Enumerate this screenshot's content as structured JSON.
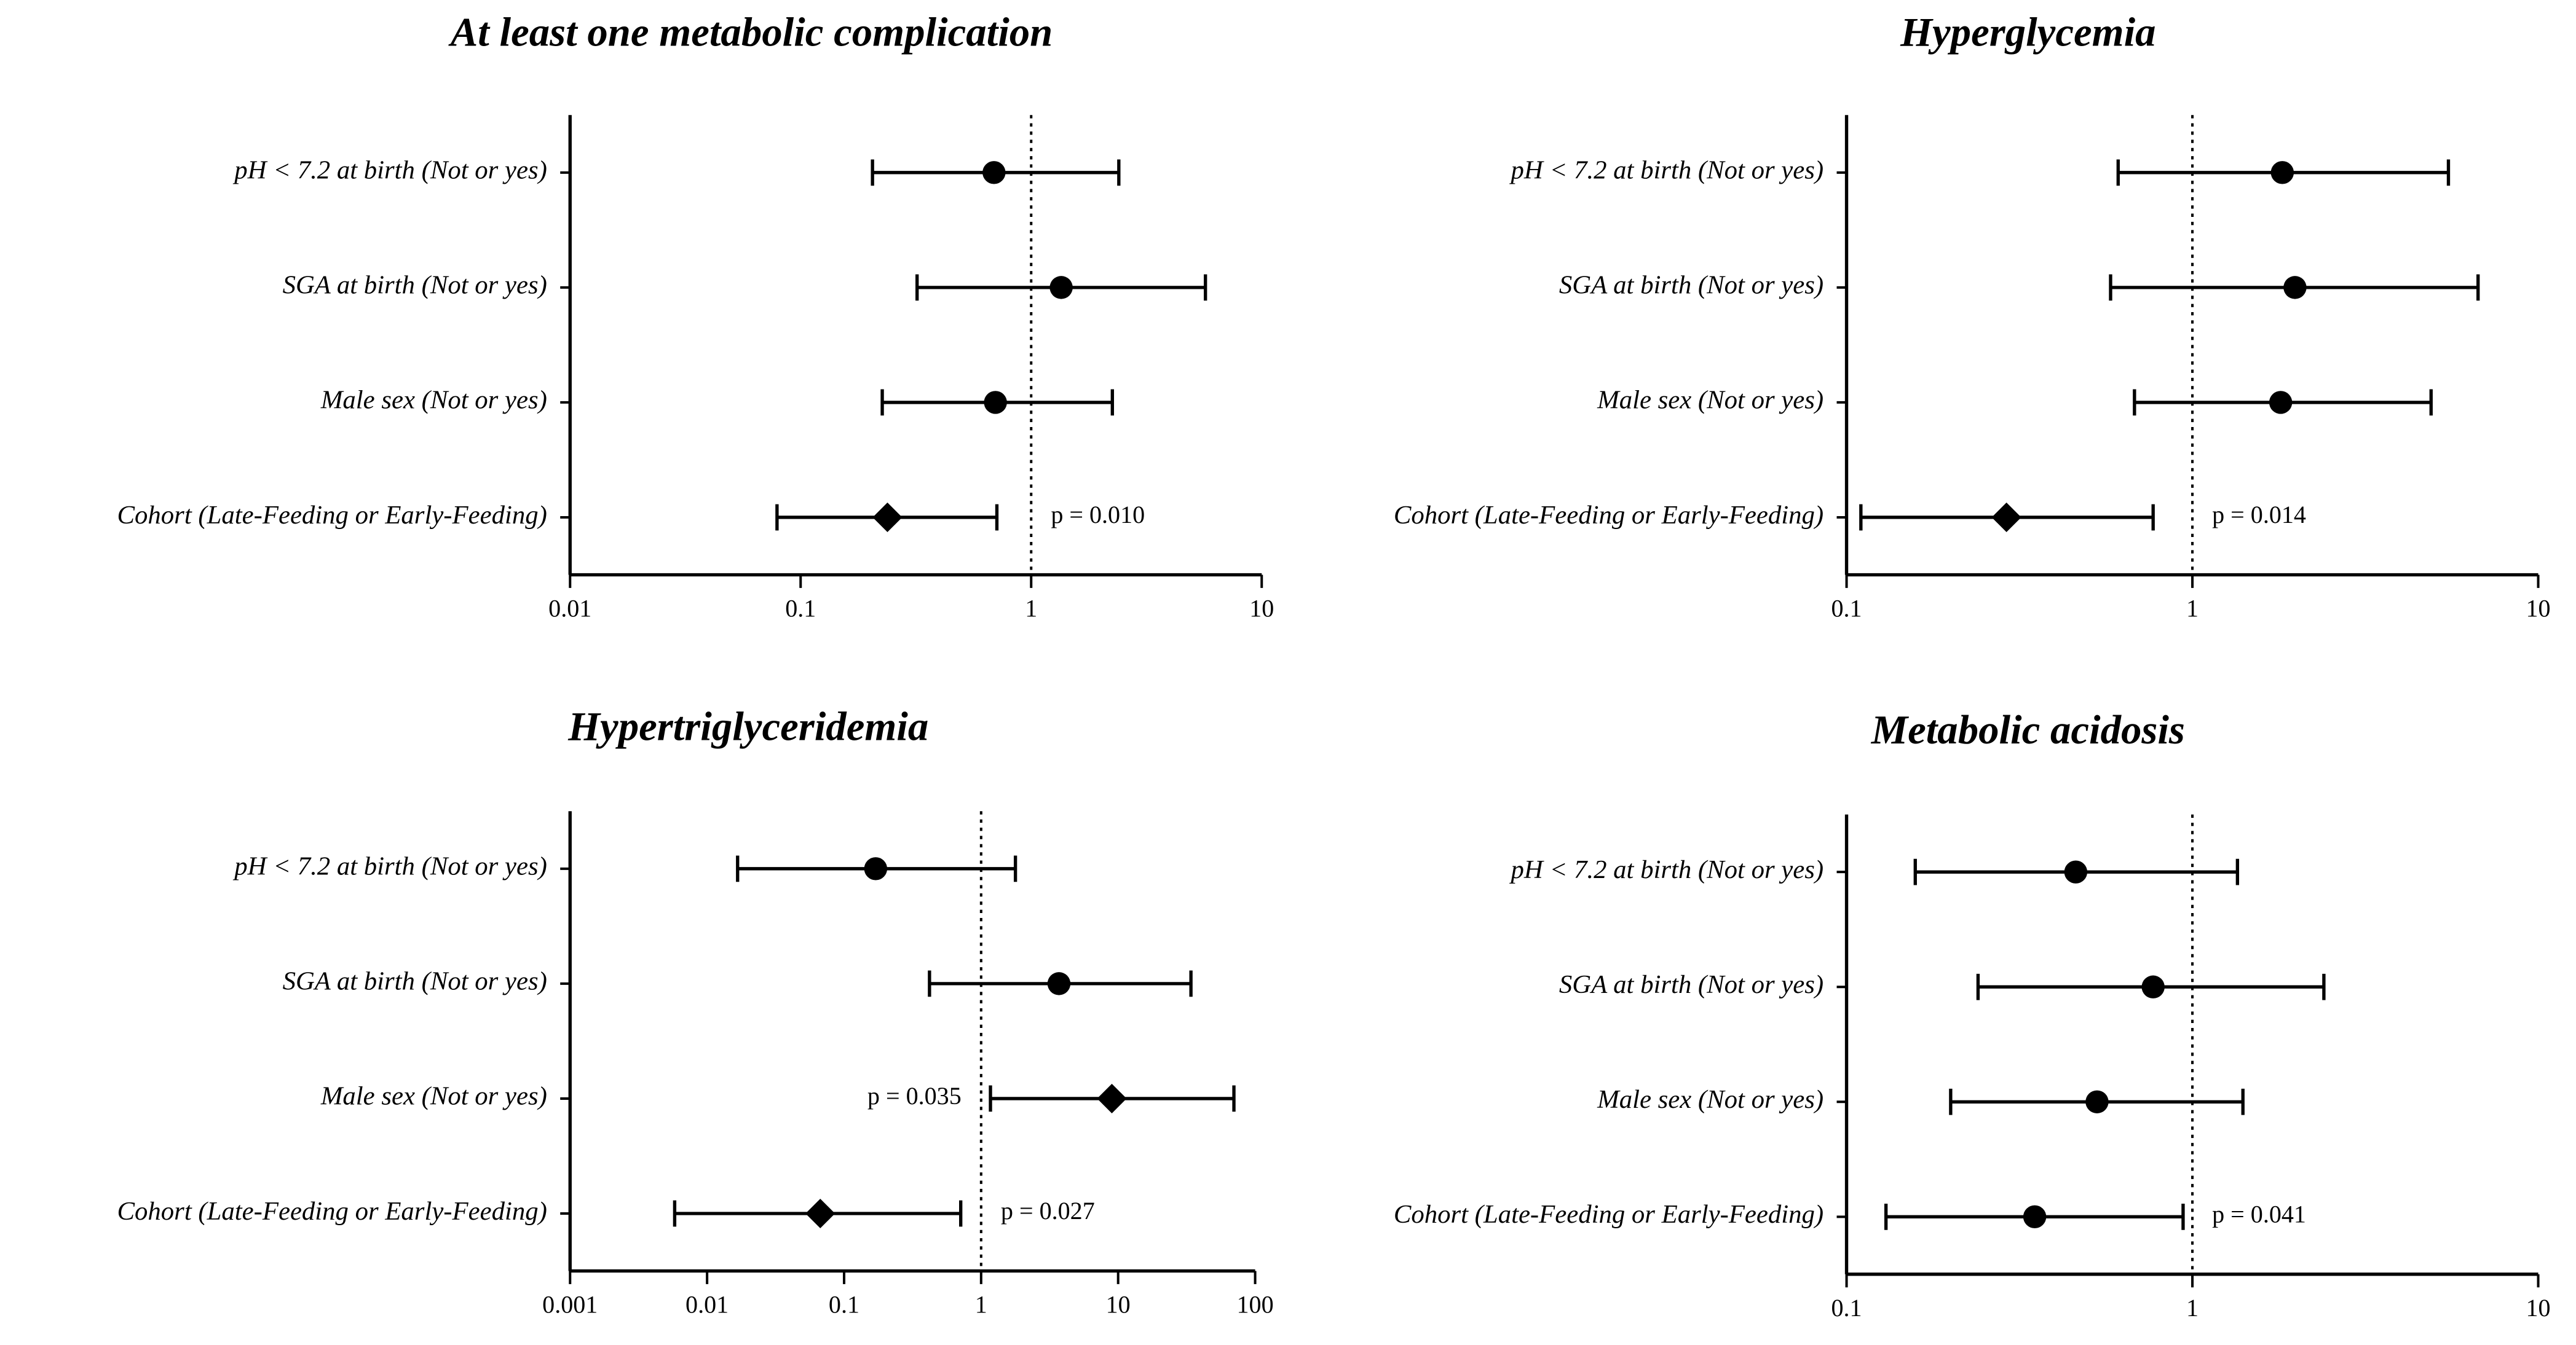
{
  "chart_data": [
    {
      "type": "forest",
      "title": "At least one metabolic complication",
      "categories": [
        "pH < 7.2 at birth (Not or yes)",
        "SGA at birth (Not or yes)",
        "Male sex (Not or yes)",
        "Cohort (Late-Feeding or Early-Feeding)"
      ],
      "values": [
        0.69,
        1.35,
        0.7,
        0.238
      ],
      "lower": [
        0.205,
        0.32,
        0.226,
        0.079
      ],
      "upper": [
        2.4,
        5.7,
        2.25,
        0.71
      ],
      "markers": [
        "circle",
        "circle",
        "circle",
        "diamond"
      ],
      "p_values": [
        null,
        null,
        null,
        "p = 0.010"
      ],
      "xlim": [
        0.01,
        10
      ],
      "xticks": [
        0.01,
        0.1,
        1,
        10
      ],
      "xscale": "log",
      "reference_line": 1,
      "color": "#000000"
    },
    {
      "type": "forest",
      "title": "Hyperglycemia",
      "categories": [
        "pH < 7.2 at birth (Not or yes)",
        "SGA at birth (Not or yes)",
        "Male sex (Not or yes)",
        "Cohort (Late-Feeding or Early-Feeding)"
      ],
      "values": [
        1.82,
        1.98,
        1.8,
        0.29
      ],
      "lower": [
        0.61,
        0.58,
        0.68,
        0.11
      ],
      "upper": [
        5.5,
        6.7,
        4.9,
        0.77
      ],
      "markers": [
        "circle",
        "circle",
        "circle",
        "diamond"
      ],
      "p_values": [
        null,
        null,
        null,
        "p = 0.014"
      ],
      "xlim": [
        0.1,
        10
      ],
      "xticks": [
        0.1,
        1,
        10
      ],
      "xscale": "log",
      "reference_line": 1,
      "color": "#000000"
    },
    {
      "type": "forest",
      "title": "Hypertriglyceridemia",
      "categories": [
        "pH < 7.2 at birth (Not or yes)",
        "SGA at birth (Not or yes)",
        "Male sex (Not or yes)",
        "Cohort (Late-Feeding or Early-Feeding)"
      ],
      "values": [
        0.17,
        3.7,
        9.0,
        0.067
      ],
      "lower": [
        0.0167,
        0.42,
        1.17,
        0.0058
      ],
      "upper": [
        1.78,
        34,
        70,
        0.71
      ],
      "markers": [
        "circle",
        "circle",
        "diamond",
        "diamond"
      ],
      "p_values": [
        null,
        null,
        "p = 0.035",
        "p = 0.027"
      ],
      "xlim": [
        0.001,
        100
      ],
      "xticks": [
        0.001,
        0.01,
        0.1,
        1,
        10,
        100
      ],
      "xscale": "log",
      "reference_line": 1,
      "color": "#000000"
    },
    {
      "type": "forest",
      "title": "Metabolic acidosis",
      "categories": [
        "pH < 7.2 at birth (Not or yes)",
        "SGA at birth (Not or yes)",
        "Male sex (Not or yes)",
        "Cohort (Late-Feeding or Early-Feeding)"
      ],
      "values": [
        0.46,
        0.77,
        0.53,
        0.35
      ],
      "lower": [
        0.158,
        0.24,
        0.2,
        0.13
      ],
      "upper": [
        1.35,
        2.4,
        1.4,
        0.94
      ],
      "markers": [
        "circle",
        "circle",
        "circle",
        "circle"
      ],
      "p_values": [
        null,
        null,
        null,
        "p = 0.041"
      ],
      "xlim": [
        0.1,
        10
      ],
      "xticks": [
        0.1,
        1,
        10
      ],
      "xscale": "log",
      "reference_line": 1,
      "color": "#000000"
    }
  ]
}
